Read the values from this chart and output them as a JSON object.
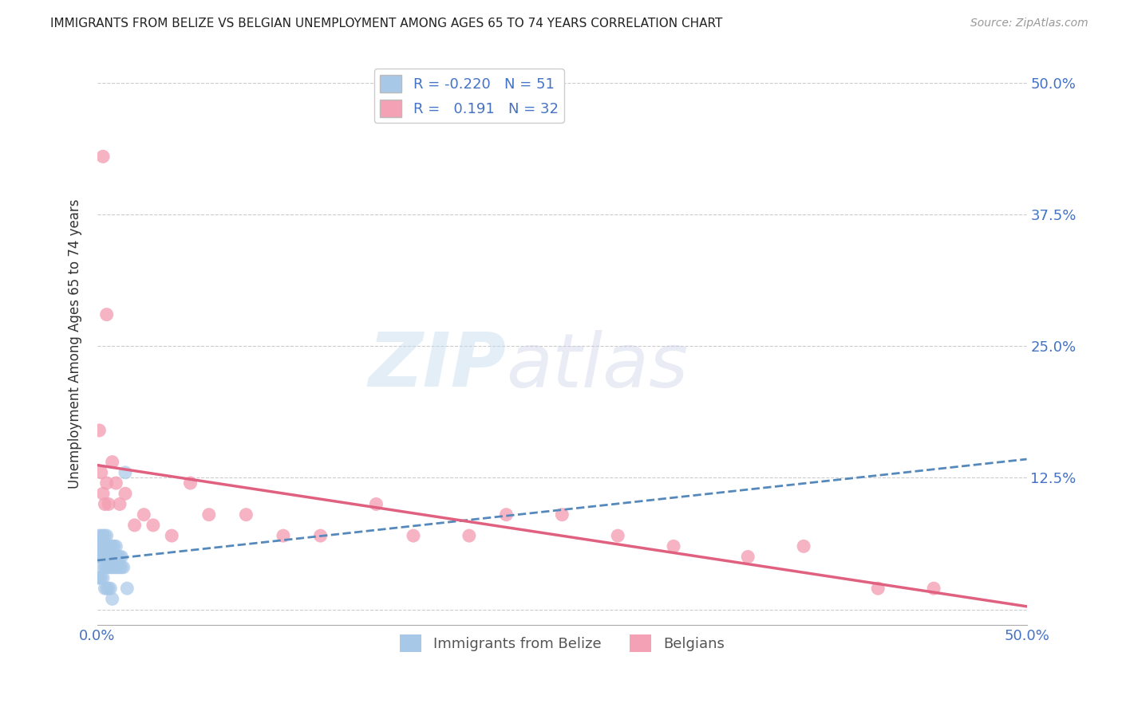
{
  "title": "IMMIGRANTS FROM BELIZE VS BELGIAN UNEMPLOYMENT AMONG AGES 65 TO 74 YEARS CORRELATION CHART",
  "source": "Source: ZipAtlas.com",
  "ylabel": "Unemployment Among Ages 65 to 74 years",
  "xmin": 0.0,
  "xmax": 0.5,
  "ymin": -0.015,
  "ymax": 0.52,
  "yticks": [
    0.0,
    0.125,
    0.25,
    0.375,
    0.5
  ],
  "ytick_labels": [
    "",
    "12.5%",
    "25.0%",
    "37.5%",
    "50.0%"
  ],
  "xticks": [
    0.0,
    0.125,
    0.25,
    0.375,
    0.5
  ],
  "xtick_labels": [
    "0.0%",
    "",
    "",
    "",
    "50.0%"
  ],
  "blue_R": -0.22,
  "blue_N": 51,
  "pink_R": 0.191,
  "pink_N": 32,
  "blue_color": "#a8c8e8",
  "pink_color": "#f4a0b5",
  "blue_line_color": "#5588bb",
  "pink_line_color": "#e06080",
  "blue_x": [
    0.0,
    0.001,
    0.001,
    0.002,
    0.002,
    0.002,
    0.003,
    0.003,
    0.003,
    0.003,
    0.004,
    0.004,
    0.004,
    0.004,
    0.005,
    0.005,
    0.005,
    0.005,
    0.006,
    0.006,
    0.006,
    0.007,
    0.007,
    0.007,
    0.008,
    0.008,
    0.008,
    0.009,
    0.009,
    0.009,
    0.01,
    0.01,
    0.01,
    0.011,
    0.011,
    0.012,
    0.012,
    0.013,
    0.013,
    0.014,
    0.0,
    0.001,
    0.002,
    0.003,
    0.004,
    0.005,
    0.006,
    0.007,
    0.008,
    0.015,
    0.016
  ],
  "blue_y": [
    0.05,
    0.06,
    0.07,
    0.05,
    0.06,
    0.07,
    0.04,
    0.05,
    0.06,
    0.07,
    0.04,
    0.05,
    0.06,
    0.07,
    0.04,
    0.05,
    0.06,
    0.07,
    0.04,
    0.05,
    0.06,
    0.04,
    0.05,
    0.06,
    0.04,
    0.05,
    0.06,
    0.04,
    0.05,
    0.06,
    0.04,
    0.05,
    0.06,
    0.04,
    0.05,
    0.04,
    0.05,
    0.04,
    0.05,
    0.04,
    0.03,
    0.03,
    0.03,
    0.03,
    0.02,
    0.02,
    0.02,
    0.02,
    0.01,
    0.13,
    0.02
  ],
  "pink_x": [
    0.001,
    0.002,
    0.003,
    0.004,
    0.005,
    0.006,
    0.008,
    0.01,
    0.012,
    0.015,
    0.02,
    0.025,
    0.03,
    0.04,
    0.05,
    0.06,
    0.08,
    0.1,
    0.12,
    0.15,
    0.17,
    0.2,
    0.22,
    0.25,
    0.28,
    0.31,
    0.35,
    0.38,
    0.42,
    0.45,
    0.003,
    0.005
  ],
  "pink_y": [
    0.17,
    0.13,
    0.11,
    0.1,
    0.12,
    0.1,
    0.14,
    0.12,
    0.1,
    0.11,
    0.08,
    0.09,
    0.08,
    0.07,
    0.12,
    0.09,
    0.09,
    0.07,
    0.07,
    0.1,
    0.07,
    0.07,
    0.09,
    0.09,
    0.07,
    0.06,
    0.05,
    0.06,
    0.02,
    0.02,
    0.43,
    0.28
  ]
}
